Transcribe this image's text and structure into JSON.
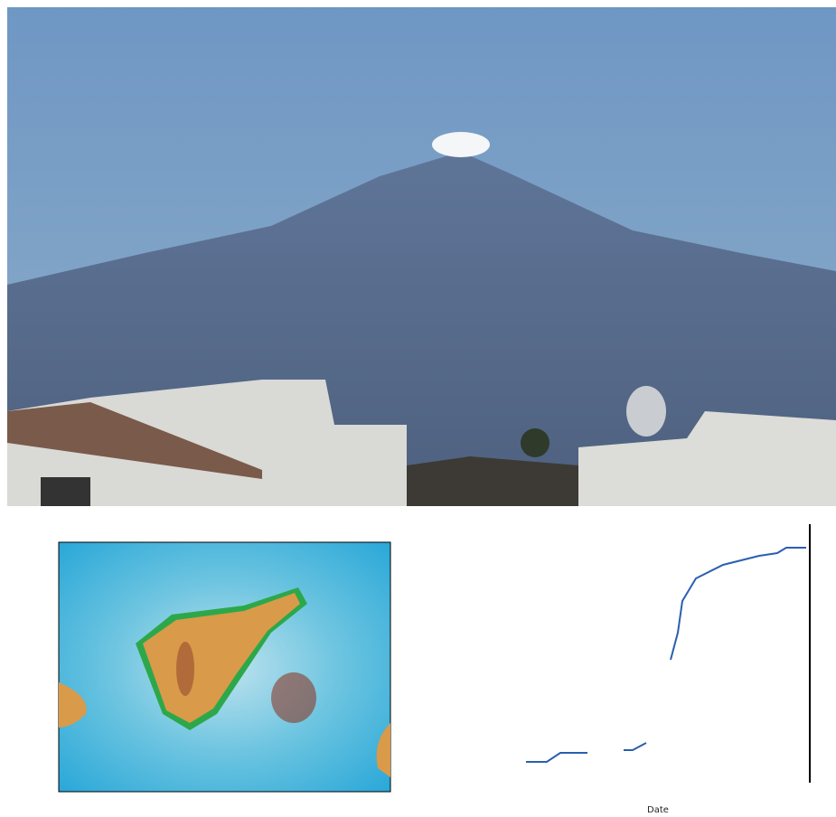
{
  "chart": {
    "x_label": "Date"
  }
}
